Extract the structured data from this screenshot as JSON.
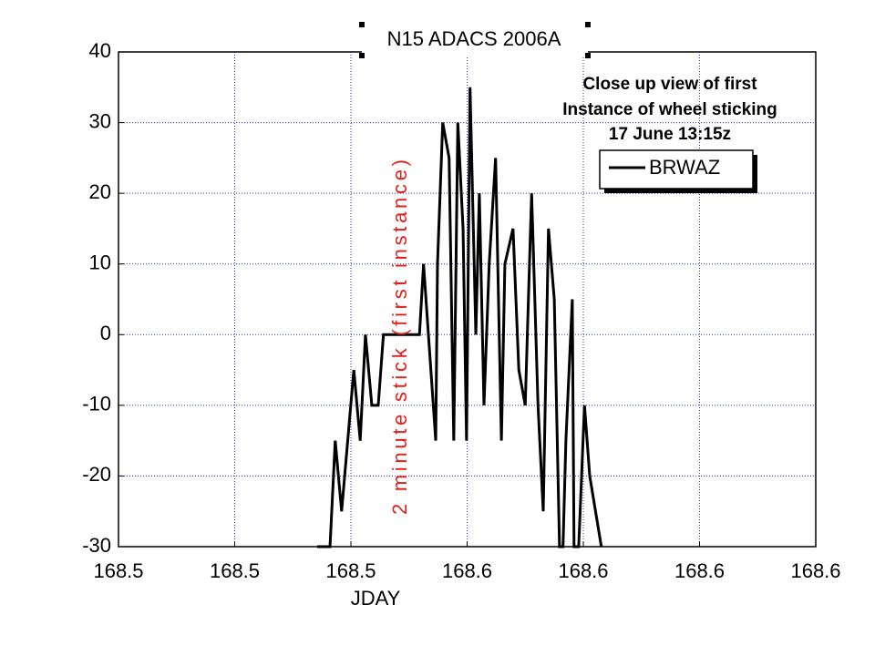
{
  "chart_data": {
    "type": "line",
    "title": "N15 ADACS 2006A",
    "xlabel": "JDAY",
    "annotations": [
      "Close up view of first",
      "Instance of wheel sticking",
      "17 June 13:15z",
      "2 minute stick (first instance)"
    ],
    "xlim": [
      168.5,
      168.62
    ],
    "xticks": [
      {
        "value": 168.5,
        "label": "168.5"
      },
      {
        "value": 168.52,
        "label": "168.5"
      },
      {
        "value": 168.54,
        "label": "168.5"
      },
      {
        "value": 168.56,
        "label": "168.6"
      },
      {
        "value": 168.58,
        "label": "168.6"
      },
      {
        "value": 168.6,
        "label": "168.6"
      },
      {
        "value": 168.62,
        "label": "168.6"
      }
    ],
    "ylim": [
      -30,
      40
    ],
    "yticks": [
      -30,
      -20,
      -10,
      0,
      10,
      20,
      30,
      40
    ],
    "grid": true,
    "legend": "upper right",
    "x": [
      168.5342,
      168.5364,
      168.5373,
      168.5384,
      168.5405,
      168.5416,
      168.5425,
      168.5436,
      168.5447,
      168.5456,
      168.5518,
      168.5525,
      168.5546,
      168.5549,
      168.5558,
      168.5569,
      168.5577,
      168.5584,
      168.5593,
      168.5599,
      168.5605,
      168.5615,
      168.5621,
      168.5629,
      168.5638,
      168.5649,
      168.5659,
      168.5665,
      168.5679,
      168.5689,
      168.57,
      168.5711,
      168.5722,
      168.5731,
      168.574,
      168.575,
      168.5759,
      168.5765,
      168.577,
      168.5781,
      168.5784,
      168.5792,
      168.5802,
      168.5811,
      168.5831
    ],
    "series": [
      {
        "name": "BRWAZ",
        "color": "#000000",
        "values": [
          -30,
          -30,
          -15,
          -25,
          -5,
          -15,
          0,
          -10,
          -10,
          0,
          0,
          10,
          -15,
          10,
          30,
          25,
          -15,
          30,
          15,
          -15,
          35,
          0,
          20,
          -10,
          10,
          25,
          -15,
          10,
          15,
          -5,
          -10,
          20,
          -10,
          -25,
          15,
          5,
          -30,
          -30,
          -15,
          5,
          -30,
          -30,
          -10,
          -20,
          -30
        ]
      }
    ]
  }
}
